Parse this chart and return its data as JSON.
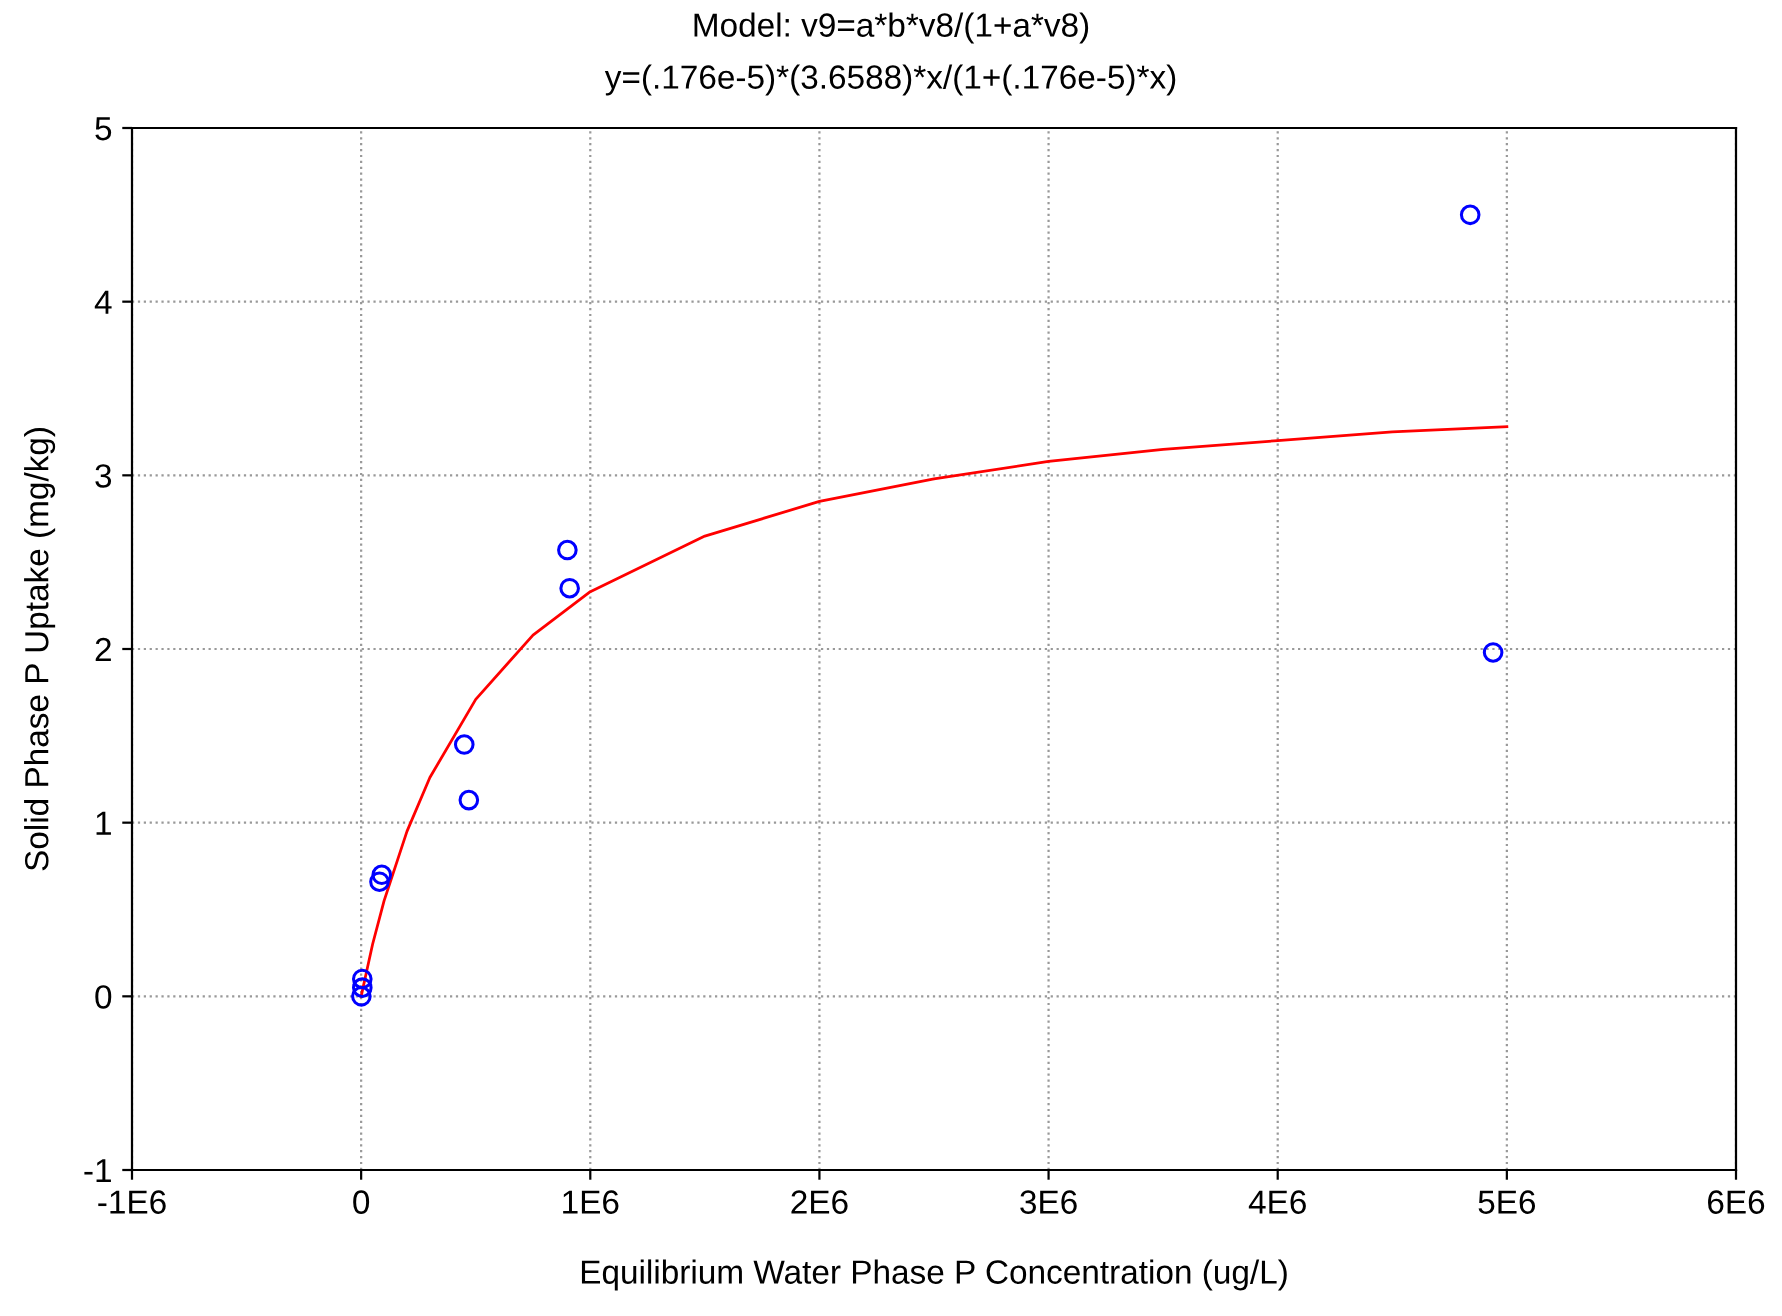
{
  "chart_data": {
    "type": "scatter",
    "title": "Model: v9=a*b*v8/(1+a*v8)",
    "subtitle": "y=(.176e-5)*(3.6588)*x/(1+(.176e-5)*x)",
    "xlabel": "Equilibrium Water Phase P Concentration (ug/L)",
    "ylabel": "Solid Phase P Uptake (mg/kg)",
    "series": [
      {
        "color": "#0000ff",
        "marker": "circle",
        "x": [
          4840000,
          4940000,
          900000,
          910000,
          450000,
          470000,
          90000,
          80000,
          5000,
          5000,
          1000
        ],
        "values": [
          4.5,
          1.98,
          2.57,
          2.35,
          1.45,
          1.13,
          0.7,
          0.66,
          0.1,
          0.05,
          0
        ]
      },
      {
        "type": "line",
        "color": "#ff0000",
        "marker": "none",
        "x": [
          0,
          10000,
          25000,
          50000,
          100000,
          200000,
          300000,
          500000,
          750000,
          1000000,
          1500000,
          2000000,
          2500000,
          3000000,
          3500000,
          4000000,
          4500000,
          5000000
        ],
        "values": [
          0,
          0.06,
          0.15,
          0.3,
          0.55,
          0.95,
          1.26,
          1.71,
          2.08,
          2.33,
          2.65,
          2.85,
          2.98,
          3.08,
          3.15,
          3.2,
          3.25,
          3.28
        ]
      }
    ],
    "xlim": [
      -1000000,
      6000000
    ],
    "xticks": [
      {
        "value": -1000000,
        "label": "-1E6"
      },
      0,
      {
        "value": 1000000,
        "label": "1E6"
      },
      {
        "value": 2000000,
        "label": "2E6"
      },
      {
        "value": 3000000,
        "label": "3E6"
      },
      {
        "value": 4000000,
        "label": "4E6"
      },
      {
        "value": 5000000,
        "label": "5E6"
      },
      {
        "value": 6000000,
        "label": "6E6"
      }
    ],
    "ylim": [
      -1,
      5
    ],
    "yticks": [
      -1,
      0,
      1,
      2,
      3,
      4,
      5
    ],
    "grid": true
  }
}
